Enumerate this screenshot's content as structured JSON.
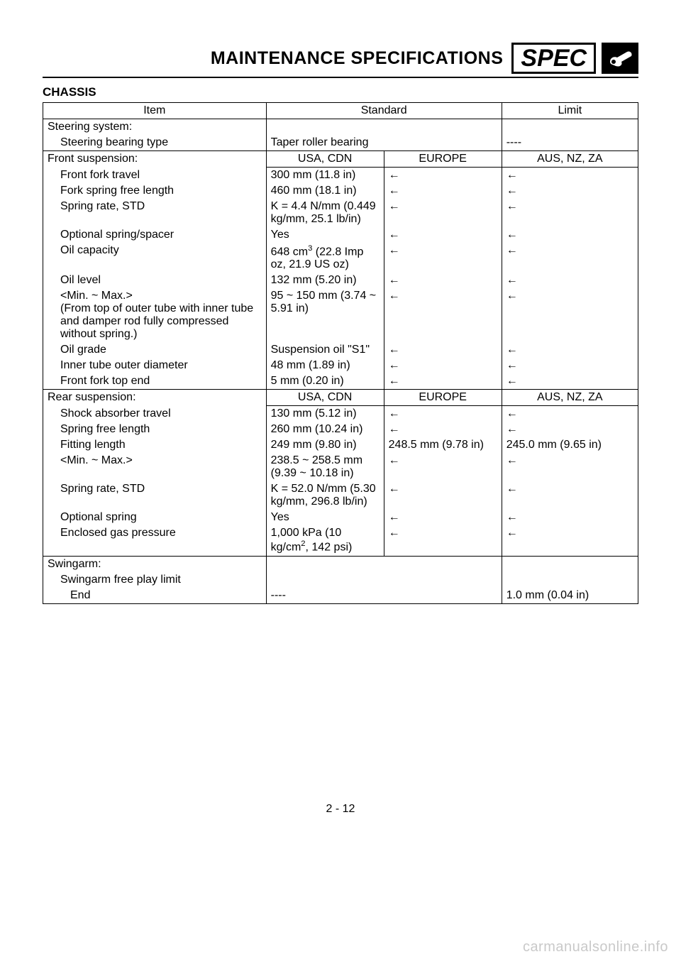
{
  "header": {
    "title": "MAINTENANCE SPECIFICATIONS",
    "badge": "SPEC"
  },
  "section_title": "CHASSIS",
  "table": {
    "headers": {
      "item": "Item",
      "standard": "Standard",
      "limit": "Limit"
    },
    "region_headers": {
      "usa": "USA, CDN",
      "europe": "EUROPE",
      "aus": "AUS, NZ, ZA"
    },
    "steering": {
      "group": "Steering system:",
      "bearing_label": "Steering bearing type",
      "bearing_value": "Taper roller bearing",
      "bearing_limit": "----"
    },
    "front": {
      "group": "Front suspension:",
      "rows": [
        {
          "label": "Front fork travel",
          "usa": "300 mm (11.8 in)",
          "eu": "←",
          "aus": "←"
        },
        {
          "label": "Fork spring free length",
          "usa": "460 mm (18.1 in)",
          "eu": "←",
          "aus": "←"
        },
        {
          "label": "Spring rate, STD",
          "usa": "K = 4.4 N/mm (0.449 kg/mm, 25.1 lb/in)",
          "eu": "←",
          "aus": "←"
        },
        {
          "label": "Optional spring/spacer",
          "usa": "Yes",
          "eu": "←",
          "aus": "←"
        },
        {
          "label": "Oil capacity",
          "usa_html": "648 cm<sup>3</sup> (22.8 Imp oz, 21.9 US oz)",
          "eu": "←",
          "aus": "←"
        },
        {
          "label": "Oil level",
          "usa": "132 mm (5.20 in)",
          "eu": "←",
          "aus": "←"
        },
        {
          "label": "<Min. ~ Max.>\n(From top of outer tube with inner tube and damper rod fully compressed without spring.)",
          "usa": "95 ~ 150 mm (3.74 ~ 5.91 in)",
          "eu": "←",
          "aus": "←"
        },
        {
          "label": "Oil grade",
          "usa": "Suspension oil \"S1\"",
          "eu": "←",
          "aus": "←"
        },
        {
          "label": "Inner tube outer diameter",
          "usa": "48 mm (1.89 in)",
          "eu": "←",
          "aus": "←"
        },
        {
          "label": "Front fork top end",
          "usa": "5 mm (0.20 in)",
          "eu": "←",
          "aus": "←"
        }
      ]
    },
    "rear": {
      "group": "Rear suspension:",
      "rows": [
        {
          "label": "Shock absorber travel",
          "usa": "130 mm (5.12 in)",
          "eu": "←",
          "aus": "←"
        },
        {
          "label": "Spring free length",
          "usa": "260 mm (10.24 in)",
          "eu": "←",
          "aus": "←"
        },
        {
          "label": "Fitting length",
          "usa": "249 mm (9.80 in)",
          "eu": "248.5 mm (9.78 in)",
          "aus": "245.0 mm (9.65 in)"
        },
        {
          "label": "<Min. ~ Max.>",
          "usa": "238.5 ~ 258.5 mm (9.39 ~ 10.18 in)",
          "eu": "←",
          "aus": "←"
        },
        {
          "label": "Spring rate, STD",
          "usa": "K = 52.0 N/mm (5.30 kg/mm, 296.8 lb/in)",
          "eu": "←",
          "aus": "←"
        },
        {
          "label": "Optional spring",
          "usa": "Yes",
          "eu": "←",
          "aus": "←"
        },
        {
          "label": "Enclosed gas pressure",
          "usa_html": "1,000 kPa (10 kg/cm<sup>2</sup>, 142 psi)",
          "eu": "←",
          "aus": "←"
        }
      ]
    },
    "swingarm": {
      "group": "Swingarm:",
      "freeplay_label": "Swingarm free play limit",
      "end_label": "End",
      "end_value": "----",
      "end_limit": "1.0 mm (0.04 in)"
    }
  },
  "page_number": "2 - 12",
  "watermark": "carmanualsonline.info",
  "colors": {
    "text": "#000000",
    "background": "#ffffff",
    "watermark": "#c9c9c9",
    "border": "#000000"
  }
}
